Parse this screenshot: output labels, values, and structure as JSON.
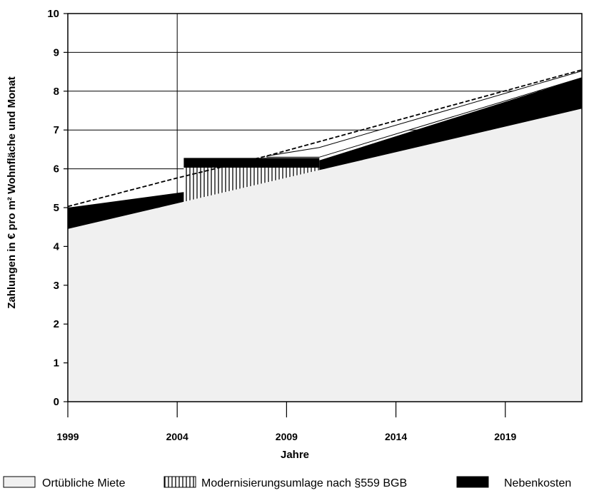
{
  "chart_data": {
    "type": "area",
    "title": "",
    "xlabel": "Jahre",
    "ylabel": "Zahlungen in € pro m² Wohnfläche und Monat",
    "xlim": [
      1999,
      2022.5
    ],
    "ylim": [
      0,
      10
    ],
    "y_ticks": [
      0,
      1,
      2,
      3,
      4,
      5,
      6,
      7,
      8,
      9,
      10
    ],
    "x_ticks": [
      1999,
      2004,
      2009,
      2014,
      2019
    ],
    "x_tick_labels": [
      "1999",
      "2004",
      "2009",
      "2014",
      "2019"
    ],
    "grid": true,
    "legend_position": "bottom",
    "series": [
      {
        "name": "Ortübliche Miete",
        "color": "#f0f0f0",
        "x": [
          1999,
          2004.3,
          2022.5
        ],
        "values": [
          4.45,
          5.15,
          7.55
        ]
      },
      {
        "name": "Modernisierungsumlage nach §559 BGB",
        "pattern": "vertical-hatch",
        "x": [
          2004.3,
          2010.5
        ],
        "values": [
          0.88,
          0.0
        ]
      },
      {
        "name": "Nebenkosten",
        "color": "#000000",
        "x": [
          1999,
          2004.3,
          2010.5,
          2022.5
        ],
        "values": [
          0.55,
          0.25,
          0.25,
          0.8
        ]
      }
    ],
    "dashed_line": {
      "x": [
        1999,
        2003.9,
        2008.1,
        2022.5
      ],
      "values": [
        5.03,
        5.75,
        6.33,
        8.55
      ]
    },
    "white_band": {
      "x": [
        2008.1,
        2010.5,
        2022.5
      ],
      "top": [
        6.33,
        6.55,
        8.52
      ],
      "bottom": [
        6.3,
        6.3,
        8.35
      ]
    }
  }
}
